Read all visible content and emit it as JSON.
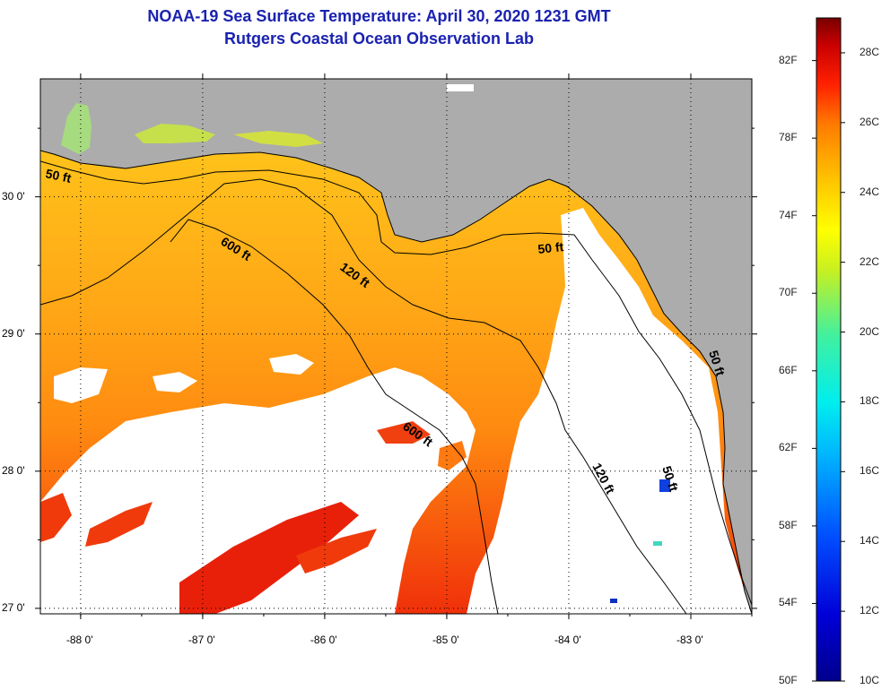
{
  "title": {
    "line1": "NOAA-19 Sea Surface Temperature:  April 30, 2020 1231 GMT",
    "line2": "Rutgers Coastal Ocean Observation Lab"
  },
  "map": {
    "lon_range": [
      -88.33,
      -82.5
    ],
    "lat_range": [
      26.96,
      30.86
    ],
    "lon_ticks": [
      {
        "value": -88,
        "label": "-88 0'"
      },
      {
        "value": -87,
        "label": "-87 0'"
      },
      {
        "value": -86,
        "label": "-86 0'"
      },
      {
        "value": -85,
        "label": "-85 0'"
      },
      {
        "value": -84,
        "label": "-84 0'"
      },
      {
        "value": -83,
        "label": "-83 0'"
      }
    ],
    "lat_ticks": [
      {
        "value": 30,
        "label": "30 0'"
      },
      {
        "value": 29,
        "label": "29 0'"
      },
      {
        "value": 28,
        "label": "28 0'"
      },
      {
        "value": 27,
        "label": "27 0'"
      }
    ],
    "contour_labels": [
      "50 ft",
      "600 ft",
      "120 ft",
      "50 ft",
      "600 ft",
      "120 ft",
      "50 ft",
      "50 ft"
    ],
    "colors": {
      "land": "#acacac",
      "cloud": "#ffffff",
      "contour": "#000000"
    }
  },
  "colorbar": {
    "min_c": 10,
    "max_c": 29,
    "celsius_labels": [
      "28C",
      "26C",
      "24C",
      "22C",
      "20C",
      "18C",
      "16C",
      "14C",
      "12C",
      "10C"
    ],
    "fahrenheit_labels": [
      "82F",
      "78F",
      "74F",
      "70F",
      "66F",
      "62F",
      "58F",
      "54F",
      "50F"
    ],
    "fahrenheit_values": [
      82,
      78,
      74,
      70,
      66,
      62,
      58,
      54,
      50
    ]
  }
}
